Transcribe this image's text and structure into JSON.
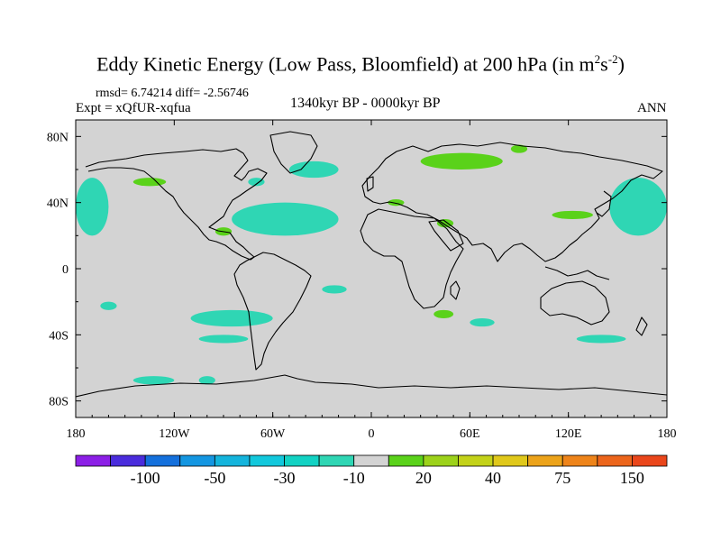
{
  "title": {
    "main": "Eddy Kinetic Energy (Low Pass, Bloomfield) at 200 hPa (in m",
    "sup1": "2",
    "mid": "s",
    "sup2": "-2",
    "end": ")"
  },
  "stats": {
    "rmsd_line": "rmsd= 6.74214 diff= -2.56746"
  },
  "experiment": "Expt = xQfUR-xqfua",
  "period": "1340kyr BP - 0000kyr BP",
  "season": "ANN",
  "map": {
    "land_color": "#d3d3d3",
    "lat_labels": [
      "80N",
      "40N",
      "0",
      "40S",
      "80S"
    ],
    "lon_labels": [
      "180",
      "120W",
      "60W",
      "0",
      "60E",
      "120E",
      "180"
    ],
    "lat_values": [
      80,
      40,
      0,
      -40,
      -80
    ],
    "lon_values": [
      -180,
      -120,
      -60,
      0,
      60,
      120,
      180
    ],
    "extent": {
      "lon": [
        -180,
        180
      ],
      "lat": [
        -90,
        90
      ]
    },
    "anomaly_regions": [
      {
        "name": "north-pacific-east",
        "level": -10,
        "lon": [
          -180,
          -160
        ],
        "lat": [
          20,
          55
        ]
      },
      {
        "name": "north-pacific-west",
        "level": -10,
        "lon": [
          145,
          180
        ],
        "lat": [
          20,
          55
        ]
      },
      {
        "name": "north-atlantic-subtropics",
        "level": -10,
        "lon": [
          -85,
          -20
        ],
        "lat": [
          20,
          40
        ]
      },
      {
        "name": "north-atlantic-north",
        "level": -10,
        "lon": [
          -50,
          -20
        ],
        "lat": [
          55,
          65
        ]
      },
      {
        "name": "labrador",
        "level": -10,
        "lon": [
          -75,
          -65
        ],
        "lat": [
          50,
          55
        ]
      },
      {
        "name": "south-indian-ocean",
        "level": 20,
        "lon": [
          38,
          50
        ],
        "lat": [
          -30,
          -25
        ]
      },
      {
        "name": "south-atlantic-east",
        "level": -10,
        "lon": [
          -30,
          -15
        ],
        "lat": [
          -15,
          -10
        ]
      },
      {
        "name": "south-pacific-east",
        "level": -10,
        "lon": [
          -110,
          -60
        ],
        "lat": [
          -35,
          -25
        ]
      },
      {
        "name": "south-pacific-south",
        "level": -10,
        "lon": [
          -105,
          -75
        ],
        "lat": [
          -45,
          -40
        ]
      },
      {
        "name": "south-atlantic-mid",
        "level": -10,
        "lon": [
          60,
          75
        ],
        "lat": [
          -35,
          -30
        ]
      },
      {
        "name": "southeast-australia",
        "level": -10,
        "lon": [
          125,
          155
        ],
        "lat": [
          -45,
          -40
        ]
      },
      {
        "name": "antarctic-pacific",
        "level": -10,
        "lon": [
          -145,
          -120
        ],
        "lat": [
          -70,
          -65
        ]
      },
      {
        "name": "antarctic-indian",
        "level": -10,
        "lon": [
          -105,
          -95
        ],
        "lat": [
          -70,
          -65
        ]
      },
      {
        "name": "brazil",
        "level": -10,
        "lon": [
          -165,
          -155
        ],
        "lat": [
          -25,
          -20
        ]
      },
      {
        "name": "west-siberia",
        "level": 20,
        "lon": [
          30,
          80
        ],
        "lat": [
          60,
          70
        ]
      },
      {
        "name": "east-siberia",
        "level": 20,
        "lon": [
          85,
          95
        ],
        "lat": [
          70,
          75
        ]
      },
      {
        "name": "mediterranean",
        "level": 20,
        "lon": [
          10,
          20
        ],
        "lat": [
          38,
          42
        ]
      },
      {
        "name": "east-asia",
        "level": 20,
        "lon": [
          110,
          135
        ],
        "lat": [
          30,
          35
        ]
      },
      {
        "name": "arabia",
        "level": 20,
        "lon": [
          40,
          50
        ],
        "lat": [
          25,
          30
        ]
      },
      {
        "name": "mexico-gulf",
        "level": 20,
        "lon": [
          -95,
          -85
        ],
        "lat": [
          20,
          25
        ]
      },
      {
        "name": "northwest-pacific",
        "level": 20,
        "lon": [
          -145,
          -125
        ],
        "lat": [
          50,
          55
        ]
      }
    ]
  },
  "colorbar": {
    "colors": [
      "#8c1fe6",
      "#4a2cdc",
      "#1470dc",
      "#1496e1",
      "#14b4dc",
      "#12c8dc",
      "#12d2c3",
      "#2fd6b4",
      "#d3d3d3",
      "#5ad21a",
      "#9cd21a",
      "#c3d219",
      "#e0c81a",
      "#eca31a",
      "#ee841a",
      "#ec651b",
      "#ea461b"
    ],
    "labels": [
      "-100",
      "-50",
      "-30",
      "-10",
      "20",
      "40",
      "75",
      "150"
    ],
    "label_values": [
      -100,
      -50,
      -30,
      -10,
      20,
      40,
      75,
      150
    ]
  }
}
